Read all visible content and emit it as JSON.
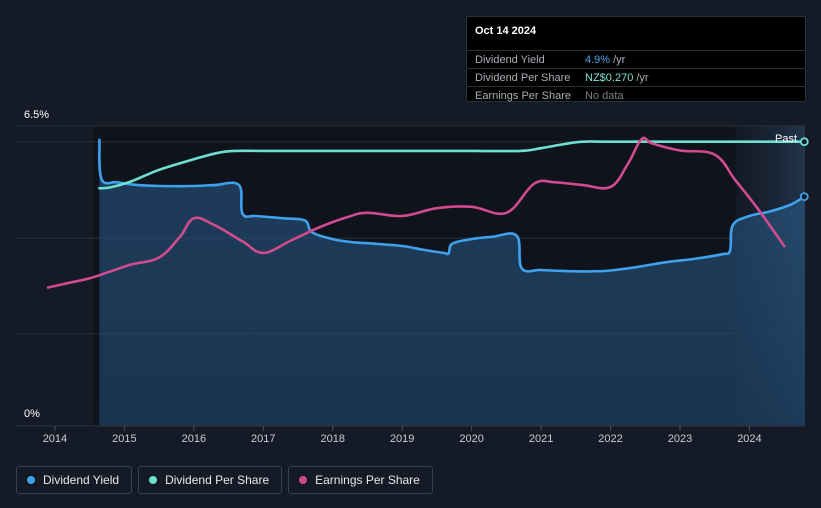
{
  "tooltip": {
    "date": "Oct 14 2024",
    "rows": [
      {
        "label": "Dividend Yield",
        "value": "4.9%",
        "unit": "/yr",
        "color": "#4aa3ec"
      },
      {
        "label": "Dividend Per Share",
        "value": "NZ$0.270",
        "unit": "/yr",
        "color": "#7de3d0"
      },
      {
        "label": "Earnings Per Share",
        "value": "No data",
        "unit": "",
        "color": "#7a7f88"
      }
    ]
  },
  "past_label": "Past",
  "legend": [
    {
      "label": "Dividend Yield",
      "color": "#3fa0ec"
    },
    {
      "label": "Dividend Per Share",
      "color": "#6fe0cf"
    },
    {
      "label": "Earnings Per Share",
      "color": "#d14b8f"
    }
  ],
  "chart_data": {
    "type": "line",
    "ylabel_top": "6.5%",
    "ylabel_bottom": "0%",
    "ylim": [
      0,
      6.5
    ],
    "xlim": [
      2013.9,
      2024.8
    ],
    "x_ticks": [
      "2014",
      "2015",
      "2016",
      "2017",
      "2018",
      "2019",
      "2020",
      "2021",
      "2022",
      "2023",
      "2024"
    ],
    "forecast_start": 2023.8,
    "series": [
      {
        "name": "Dividend Yield",
        "color": "#3fa0ec",
        "points": [
          [
            2014.64,
            6.2
          ],
          [
            2014.67,
            5.35
          ],
          [
            2014.9,
            5.28
          ],
          [
            2015.2,
            5.22
          ],
          [
            2015.5,
            5.2
          ],
          [
            2016.0,
            5.2
          ],
          [
            2016.3,
            5.22
          ],
          [
            2016.65,
            5.22
          ],
          [
            2016.7,
            4.6
          ],
          [
            2016.9,
            4.55
          ],
          [
            2017.3,
            4.5
          ],
          [
            2017.6,
            4.45
          ],
          [
            2017.7,
            4.2
          ],
          [
            2018.0,
            4.05
          ],
          [
            2018.3,
            3.98
          ],
          [
            2018.6,
            3.95
          ],
          [
            2019.0,
            3.9
          ],
          [
            2019.3,
            3.82
          ],
          [
            2019.6,
            3.75
          ],
          [
            2019.67,
            3.74
          ],
          [
            2019.72,
            3.95
          ],
          [
            2020.0,
            4.05
          ],
          [
            2020.3,
            4.1
          ],
          [
            2020.65,
            4.12
          ],
          [
            2020.72,
            3.42
          ],
          [
            2021.0,
            3.38
          ],
          [
            2021.3,
            3.36
          ],
          [
            2021.7,
            3.35
          ],
          [
            2022.0,
            3.37
          ],
          [
            2022.4,
            3.45
          ],
          [
            2022.8,
            3.55
          ],
          [
            2023.2,
            3.62
          ],
          [
            2023.6,
            3.72
          ],
          [
            2023.72,
            3.8
          ],
          [
            2023.76,
            4.35
          ],
          [
            2024.0,
            4.55
          ],
          [
            2024.3,
            4.65
          ],
          [
            2024.6,
            4.8
          ],
          [
            2024.79,
            4.97
          ]
        ]
      },
      {
        "name": "Dividend Per Share",
        "color": "#6fe0cf",
        "points": [
          [
            2014.64,
            5.15
          ],
          [
            2014.8,
            5.17
          ],
          [
            2015.1,
            5.3
          ],
          [
            2015.5,
            5.55
          ],
          [
            2016.0,
            5.78
          ],
          [
            2016.35,
            5.92
          ],
          [
            2016.6,
            5.96
          ],
          [
            2017.0,
            5.96
          ],
          [
            2018.0,
            5.96
          ],
          [
            2019.0,
            5.96
          ],
          [
            2020.0,
            5.96
          ],
          [
            2020.7,
            5.96
          ],
          [
            2021.0,
            6.02
          ],
          [
            2021.3,
            6.1
          ],
          [
            2021.6,
            6.16
          ],
          [
            2022.0,
            6.16
          ],
          [
            2023.0,
            6.16
          ],
          [
            2024.0,
            6.16
          ],
          [
            2024.79,
            6.16
          ]
        ]
      },
      {
        "name": "Earnings Per Share",
        "color": "#d14b8f",
        "points": [
          [
            2013.9,
            3.0
          ],
          [
            2014.2,
            3.1
          ],
          [
            2014.5,
            3.2
          ],
          [
            2014.8,
            3.35
          ],
          [
            2015.1,
            3.5
          ],
          [
            2015.5,
            3.65
          ],
          [
            2015.8,
            4.1
          ],
          [
            2016.0,
            4.5
          ],
          [
            2016.3,
            4.35
          ],
          [
            2016.7,
            4.0
          ],
          [
            2017.0,
            3.75
          ],
          [
            2017.4,
            4.02
          ],
          [
            2017.8,
            4.3
          ],
          [
            2018.2,
            4.52
          ],
          [
            2018.5,
            4.62
          ],
          [
            2019.0,
            4.55
          ],
          [
            2019.5,
            4.72
          ],
          [
            2020.0,
            4.75
          ],
          [
            2020.5,
            4.62
          ],
          [
            2020.9,
            5.25
          ],
          [
            2021.2,
            5.28
          ],
          [
            2021.6,
            5.22
          ],
          [
            2022.0,
            5.18
          ],
          [
            2022.25,
            5.68
          ],
          [
            2022.45,
            6.22
          ],
          [
            2022.6,
            6.12
          ],
          [
            2023.0,
            5.97
          ],
          [
            2023.5,
            5.88
          ],
          [
            2023.8,
            5.32
          ],
          [
            2024.1,
            4.75
          ],
          [
            2024.5,
            3.9
          ]
        ]
      }
    ]
  }
}
